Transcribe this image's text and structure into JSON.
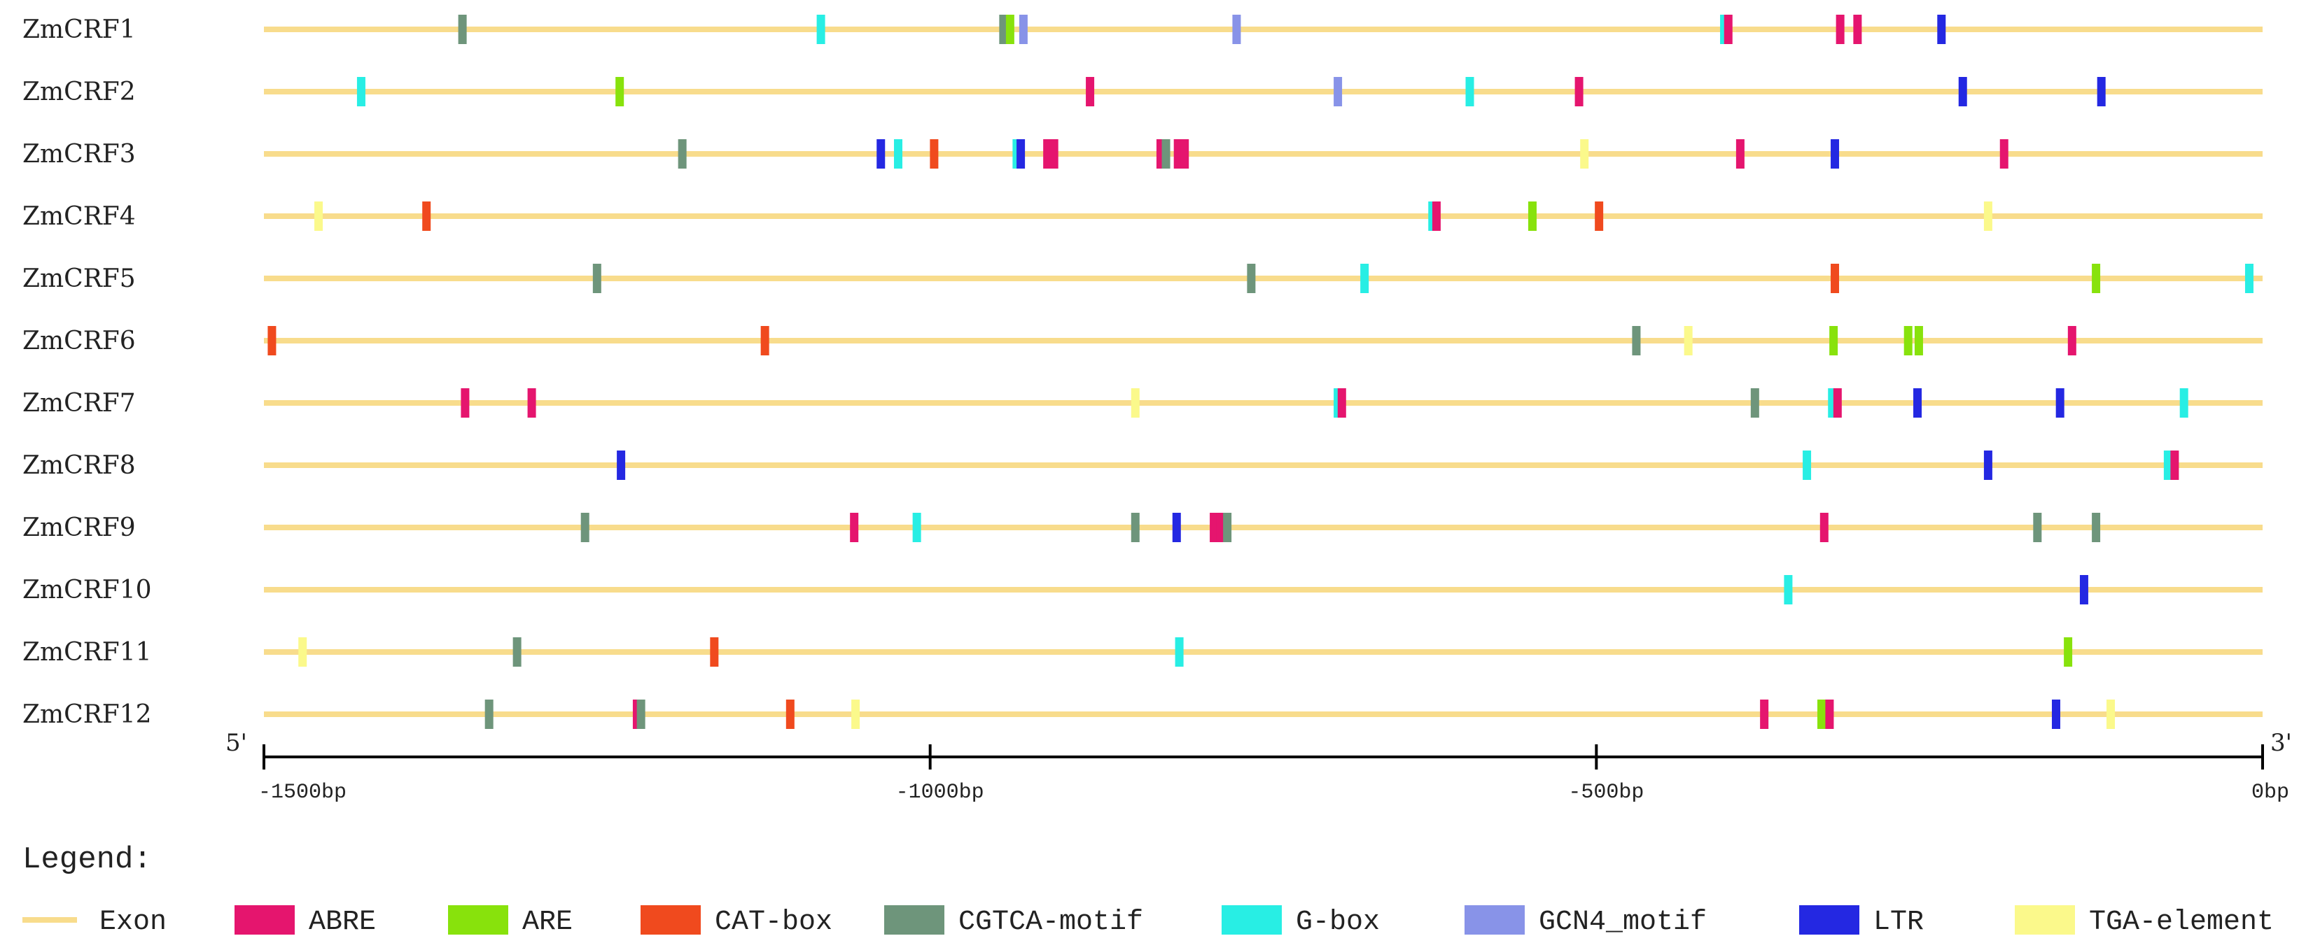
{
  "chart_data": {
    "type": "promoter-element-map",
    "axis": {
      "start_label": "5'",
      "end_label": "3'",
      "range": [
        -1500,
        0
      ],
      "ticks": [
        {
          "value": -1500,
          "label": "-1500bp"
        },
        {
          "value": -1000,
          "label": "-1000bp"
        },
        {
          "value": -500,
          "label": "-500bp"
        },
        {
          "value": 0,
          "label": "0bp"
        }
      ]
    },
    "legend_title": "Legend:",
    "legend": [
      {
        "key": "Exon",
        "label": "Exon",
        "color": "#F8DC8C",
        "style": "line"
      },
      {
        "key": "ABRE",
        "label": "ABRE",
        "color": "#E5156E"
      },
      {
        "key": "ARE",
        "label": "ARE",
        "color": "#88E20C"
      },
      {
        "key": "CAT",
        "label": "CAT-box",
        "color": "#F04A1E"
      },
      {
        "key": "CGTCA",
        "label": "CGTCA-motif",
        "color": "#6E957B"
      },
      {
        "key": "GBOX",
        "label": "G-box",
        "color": "#28EEE4"
      },
      {
        "key": "GCN4",
        "label": "GCN4_motif",
        "color": "#8893E8"
      },
      {
        "key": "LTR",
        "label": "LTR",
        "color": "#2428E2"
      },
      {
        "key": "TGA",
        "label": "TGA-element",
        "color": "#FBF98B"
      }
    ],
    "genes": [
      {
        "name": "ZmCRF1",
        "elements": [
          {
            "type": "CGTCA",
            "pos": -1351
          },
          {
            "type": "GBOX",
            "pos": -1082
          },
          {
            "type": "CGTCA",
            "pos": -945
          },
          {
            "type": "ARE",
            "pos": -940
          },
          {
            "type": "GCN4",
            "pos": -930
          },
          {
            "type": "GCN4",
            "pos": -770
          },
          {
            "type": "GBOX",
            "pos": -404
          },
          {
            "type": "ABRE",
            "pos": -401
          },
          {
            "type": "ABRE",
            "pos": -317
          },
          {
            "type": "ABRE",
            "pos": -304
          },
          {
            "type": "LTR",
            "pos": -241
          }
        ]
      },
      {
        "name": "ZmCRF2",
        "elements": [
          {
            "type": "GBOX",
            "pos": -1427
          },
          {
            "type": "ARE",
            "pos": -1233
          },
          {
            "type": "ABRE",
            "pos": -880
          },
          {
            "type": "GCN4",
            "pos": -694
          },
          {
            "type": "GBOX",
            "pos": -595
          },
          {
            "type": "ABRE",
            "pos": -513
          },
          {
            "type": "LTR",
            "pos": -225
          },
          {
            "type": "LTR",
            "pos": -121
          }
        ]
      },
      {
        "name": "ZmCRF3",
        "elements": [
          {
            "type": "CGTCA",
            "pos": -1186
          },
          {
            "type": "LTR",
            "pos": -1037
          },
          {
            "type": "GBOX",
            "pos": -1024
          },
          {
            "type": "CAT",
            "pos": -997
          },
          {
            "type": "GBOX",
            "pos": -935
          },
          {
            "type": "LTR",
            "pos": -932
          },
          {
            "type": "ABRE",
            "pos": -912
          },
          {
            "type": "ABRE",
            "pos": -907
          },
          {
            "type": "ABRE",
            "pos": -827
          },
          {
            "type": "CGTCA",
            "pos": -823
          },
          {
            "type": "ABRE",
            "pos": -814
          },
          {
            "type": "ABRE",
            "pos": -809
          },
          {
            "type": "TGA",
            "pos": -509
          },
          {
            "type": "ABRE",
            "pos": -392
          },
          {
            "type": "LTR",
            "pos": -321
          },
          {
            "type": "ABRE",
            "pos": -194
          }
        ]
      },
      {
        "name": "ZmCRF4",
        "elements": [
          {
            "type": "TGA",
            "pos": -1459
          },
          {
            "type": "CAT",
            "pos": -1378
          },
          {
            "type": "GBOX",
            "pos": -623
          },
          {
            "type": "ABRE",
            "pos": -620
          },
          {
            "type": "ARE",
            "pos": -548
          },
          {
            "type": "CAT",
            "pos": -498
          },
          {
            "type": "TGA",
            "pos": -206
          }
        ]
      },
      {
        "name": "ZmCRF5",
        "elements": [
          {
            "type": "CGTCA",
            "pos": -1250
          },
          {
            "type": "CGTCA",
            "pos": -759
          },
          {
            "type": "GBOX",
            "pos": -674
          },
          {
            "type": "CAT",
            "pos": -321
          },
          {
            "type": "ARE",
            "pos": -125
          },
          {
            "type": "GBOX",
            "pos": -10
          }
        ]
      },
      {
        "name": "ZmCRF6",
        "elements": [
          {
            "type": "CAT",
            "pos": -1494
          },
          {
            "type": "CAT",
            "pos": -1124
          },
          {
            "type": "CGTCA",
            "pos": -470
          },
          {
            "type": "TGA",
            "pos": -431
          },
          {
            "type": "ARE",
            "pos": -322
          },
          {
            "type": "ARE",
            "pos": -266
          },
          {
            "type": "ARE",
            "pos": -258
          },
          {
            "type": "ABRE",
            "pos": -143
          }
        ]
      },
      {
        "name": "ZmCRF7",
        "elements": [
          {
            "type": "ABRE",
            "pos": -1349
          },
          {
            "type": "ABRE",
            "pos": -1299
          },
          {
            "type": "TGA",
            "pos": -846
          },
          {
            "type": "GBOX",
            "pos": -694
          },
          {
            "type": "ABRE",
            "pos": -691
          },
          {
            "type": "CGTCA",
            "pos": -381
          },
          {
            "type": "GBOX",
            "pos": -323
          },
          {
            "type": "ABRE",
            "pos": -319
          },
          {
            "type": "LTR",
            "pos": -259
          },
          {
            "type": "LTR",
            "pos": -152
          },
          {
            "type": "GBOX",
            "pos": -59
          }
        ]
      },
      {
        "name": "ZmCRF8",
        "elements": [
          {
            "type": "LTR",
            "pos": -1232
          },
          {
            "type": "GBOX",
            "pos": -342
          },
          {
            "type": "LTR",
            "pos": -206
          },
          {
            "type": "GBOX",
            "pos": -71
          },
          {
            "type": "ABRE",
            "pos": -66
          }
        ]
      },
      {
        "name": "ZmCRF9",
        "elements": [
          {
            "type": "CGTCA",
            "pos": -1259
          },
          {
            "type": "ABRE",
            "pos": -1057
          },
          {
            "type": "GBOX",
            "pos": -1010
          },
          {
            "type": "CGTCA",
            "pos": -846
          },
          {
            "type": "LTR",
            "pos": -815
          },
          {
            "type": "ABRE",
            "pos": -787
          },
          {
            "type": "ABRE",
            "pos": -782
          },
          {
            "type": "CGTCA",
            "pos": -777
          },
          {
            "type": "ABRE",
            "pos": -329
          },
          {
            "type": "CGTCA",
            "pos": -169
          },
          {
            "type": "CGTCA",
            "pos": -125
          }
        ]
      },
      {
        "name": "ZmCRF10",
        "elements": [
          {
            "type": "GBOX",
            "pos": -356
          },
          {
            "type": "LTR",
            "pos": -134
          }
        ]
      },
      {
        "name": "ZmCRF11",
        "elements": [
          {
            "type": "TGA",
            "pos": -1471
          },
          {
            "type": "CGTCA",
            "pos": -1310
          },
          {
            "type": "CAT",
            "pos": -1162
          },
          {
            "type": "GBOX",
            "pos": -813
          },
          {
            "type": "ARE",
            "pos": -146
          }
        ]
      },
      {
        "name": "ZmCRF12",
        "elements": [
          {
            "type": "CGTCA",
            "pos": -1331
          },
          {
            "type": "ABRE",
            "pos": -1220
          },
          {
            "type": "CGTCA",
            "pos": -1217
          },
          {
            "type": "CAT",
            "pos": -1105
          },
          {
            "type": "TGA",
            "pos": -1056
          },
          {
            "type": "ABRE",
            "pos": -374
          },
          {
            "type": "ARE",
            "pos": -331
          },
          {
            "type": "ABRE",
            "pos": -325
          },
          {
            "type": "LTR",
            "pos": -155
          },
          {
            "type": "TGA",
            "pos": -114
          }
        ]
      }
    ]
  }
}
